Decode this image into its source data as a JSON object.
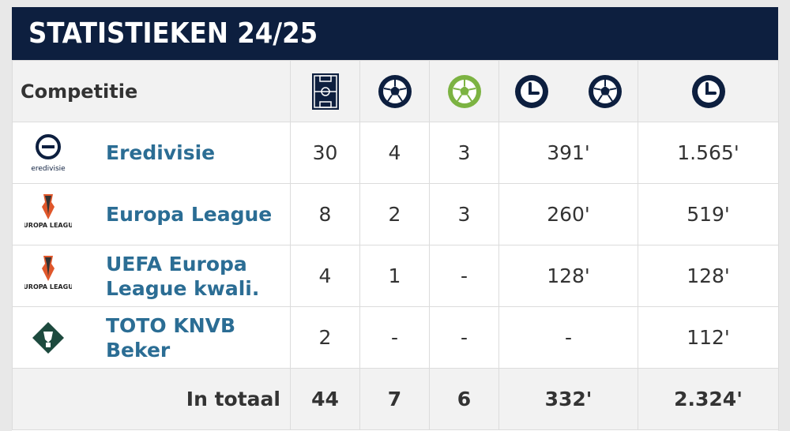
{
  "title": "STATISTIEKEN 24/25",
  "header": {
    "competition_label": "Competitie",
    "icons": [
      "pitch-icon",
      "ball-icon",
      "ball-green-icon",
      "clock-ball-icon",
      "clock-icon"
    ]
  },
  "rows": [
    {
      "logo_text": "eredivisie",
      "name": "Eredivisie",
      "apps": "30",
      "goals": "4",
      "assists": "3",
      "min_per_goal": "391'",
      "minutes": "1.565'"
    },
    {
      "logo_text": "EUROPA LEAGUE",
      "name": "Europa League",
      "apps": "8",
      "goals": "2",
      "assists": "3",
      "min_per_goal": "260'",
      "minutes": "519'"
    },
    {
      "logo_text": "EUROPA LEAGUE",
      "name": "UEFA Europa League kwali.",
      "apps": "4",
      "goals": "1",
      "assists": "-",
      "min_per_goal": "128'",
      "minutes": "128'"
    },
    {
      "logo_text": "",
      "name": "TOTO KNVB Beker",
      "apps": "2",
      "goals": "-",
      "assists": "-",
      "min_per_goal": "-",
      "minutes": "112'"
    }
  ],
  "total": {
    "label": "In totaal",
    "apps": "44",
    "goals": "7",
    "assists": "6",
    "min_per_goal": "332'",
    "minutes": "2.324'"
  },
  "colors": {
    "header_bg": "#0d1f3f",
    "link": "#2b6d94",
    "green": "#7cb342"
  }
}
